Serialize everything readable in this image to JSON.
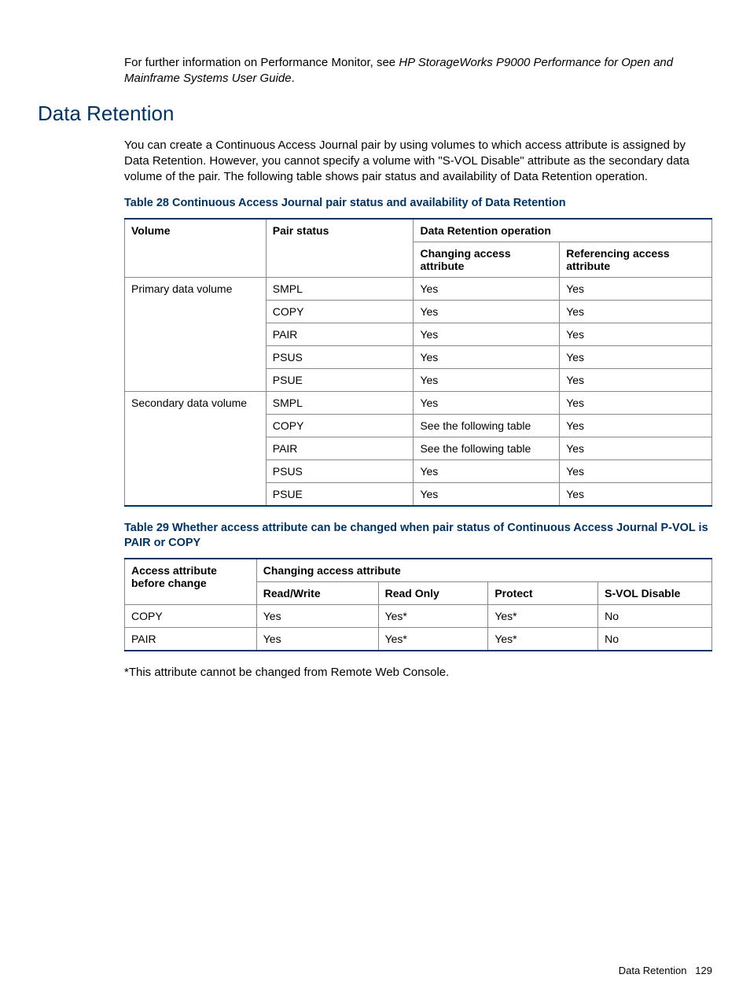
{
  "colors": {
    "heading": "#003366",
    "table_accent": "#003366",
    "border": "#888888",
    "text": "#000000",
    "background": "#ffffff"
  },
  "typography": {
    "body_fontsize_pt": 11,
    "heading_fontsize_pt": 20,
    "caption_fontsize_pt": 11,
    "table_fontsize_pt": 10.5,
    "font_family": "Arial, Helvetica, sans-serif"
  },
  "intro": {
    "prefix": "For further information on Performance Monitor, see ",
    "italic": "HP StorageWorks P9000 Performance for Open and Mainframe Systems User Guide",
    "suffix": "."
  },
  "heading": "Data Retention",
  "paragraph": "You can create a Continuous Access Journal pair by using volumes to which access attribute is assigned by Data Retention. However, you cannot specify a volume with \"S-VOL Disable\" attribute as the secondary data volume of the pair. The following table shows pair status and availability of Data Retention operation.",
  "table28": {
    "caption": "Table 28 Continuous Access Journal pair status and availability of Data Retention",
    "columns": {
      "volume": "Volume",
      "pair_status": "Pair status",
      "dr_operation": "Data Retention operation",
      "changing": "Changing access attribute",
      "referencing": "Referencing access attribute"
    },
    "col_widths": [
      "180px",
      "188px",
      "186px",
      "194px"
    ],
    "groups": [
      {
        "volume": "Primary data volume",
        "rows": [
          {
            "pair_status": "SMPL",
            "changing": "Yes",
            "referencing": "Yes"
          },
          {
            "pair_status": "COPY",
            "changing": "Yes",
            "referencing": "Yes"
          },
          {
            "pair_status": "PAIR",
            "changing": "Yes",
            "referencing": "Yes"
          },
          {
            "pair_status": "PSUS",
            "changing": "Yes",
            "referencing": "Yes"
          },
          {
            "pair_status": "PSUE",
            "changing": "Yes",
            "referencing": "Yes"
          }
        ]
      },
      {
        "volume": "Secondary data volume",
        "rows": [
          {
            "pair_status": "SMPL",
            "changing": "Yes",
            "referencing": "Yes"
          },
          {
            "pair_status": "COPY",
            "changing": "See the following table",
            "referencing": "Yes"
          },
          {
            "pair_status": "PAIR",
            "changing": "See the following table",
            "referencing": "Yes"
          },
          {
            "pair_status": "PSUS",
            "changing": "Yes",
            "referencing": "Yes"
          },
          {
            "pair_status": "PSUE",
            "changing": "Yes",
            "referencing": "Yes"
          }
        ]
      }
    ]
  },
  "table29": {
    "caption": "Table 29 Whether access attribute can be changed when pair status of Continuous Access Journal P-VOL is PAIR or COPY",
    "columns": {
      "before": "Access attribute before change",
      "changing": "Changing access attribute",
      "rw": "Read/Write",
      "ro": "Read Only",
      "protect": "Protect",
      "svol": "S-VOL Disable"
    },
    "col_widths": [
      "168px",
      "155px",
      "140px",
      "140px",
      "145px"
    ],
    "rows": [
      {
        "before": "COPY",
        "rw": "Yes",
        "ro": "Yes*",
        "protect": "Yes*",
        "svol": "No"
      },
      {
        "before": "PAIR",
        "rw": "Yes",
        "ro": "Yes*",
        "protect": "Yes*",
        "svol": "No"
      }
    ]
  },
  "footnote": "*This attribute cannot be changed from Remote Web Console.",
  "footer": {
    "section": "Data Retention",
    "page": "129"
  }
}
